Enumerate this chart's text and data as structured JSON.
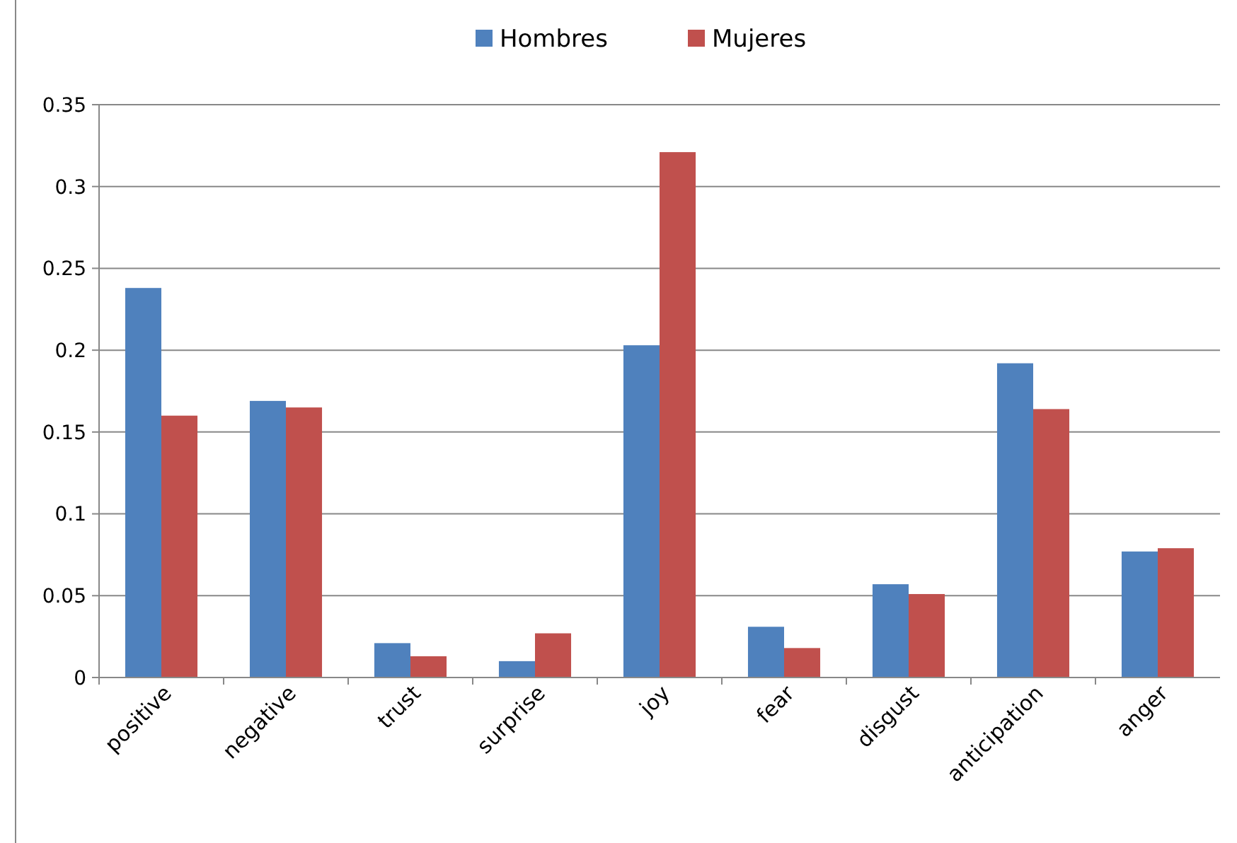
{
  "chart_data": {
    "type": "bar",
    "categories": [
      "positive",
      "negative",
      "trust",
      "surprise",
      "joy",
      "fear",
      "disgust",
      "anticipation",
      "anger"
    ],
    "series": [
      {
        "name": "Hombres",
        "color": "#4f81bd",
        "values": [
          0.238,
          0.169,
          0.021,
          0.01,
          0.203,
          0.031,
          0.057,
          0.192,
          0.077
        ]
      },
      {
        "name": "Mujeres",
        "color": "#c0504d",
        "values": [
          0.16,
          0.165,
          0.013,
          0.027,
          0.321,
          0.018,
          0.051,
          0.164,
          0.079
        ]
      }
    ],
    "ylim": [
      0,
      0.35
    ],
    "yticks": [
      0,
      0.05,
      0.1,
      0.15,
      0.2,
      0.25,
      0.3,
      0.35
    ],
    "grid": "y",
    "legend": "top"
  }
}
